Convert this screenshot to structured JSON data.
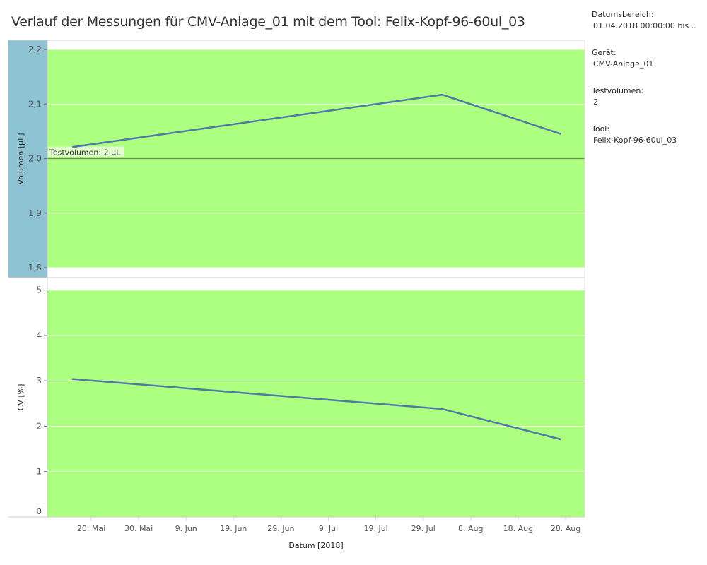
{
  "title": "Verlauf der Messungen für CMV-Anlage_01 mit dem Tool: Felix-Kopf-96-60ul_03",
  "filters": [
    {
      "label": "Datumsbereich:",
      "value": "01.04.2018 00:00:00 bis .."
    },
    {
      "label": "Gerät:",
      "value": "CMV-Anlage_01"
    },
    {
      "label": "Testvolumen:",
      "value": "2"
    },
    {
      "label": "Tool:",
      "value": "Felix-Kopf-96-60ul_03"
    }
  ],
  "colors": {
    "band": "#adff80",
    "line": "#4e79a7",
    "axis_highlight": "#8ec3d3",
    "ref_line": "#6a8a5a"
  },
  "chart_data": [
    {
      "type": "line",
      "ylabel": "Volumen [µL]",
      "ylim": [
        1.8,
        2.2
      ],
      "yticks": [
        "2,2",
        "2,1",
        "2,0",
        "1,9",
        "1,8"
      ],
      "ytick_values": [
        2.2,
        2.1,
        2.0,
        1.9,
        1.8
      ],
      "x": [
        "2018-05-16",
        "2018-08-02",
        "2018-08-27"
      ],
      "values": [
        2.021,
        2.117,
        2.045
      ],
      "band": [
        1.8,
        2.2
      ],
      "reference_line": {
        "value": 2.0,
        "label": "Testvolumen: 2 µL"
      },
      "grid": true
    },
    {
      "type": "line",
      "ylabel": "CV [%]",
      "ylim": [
        0,
        5
      ],
      "yticks": [
        "5",
        "4",
        "3",
        "2",
        "1",
        "0"
      ],
      "ytick_values": [
        5,
        4,
        3,
        2,
        1,
        0
      ],
      "x": [
        "2018-05-16",
        "2018-08-02",
        "2018-08-27"
      ],
      "values": [
        3.04,
        2.38,
        1.71
      ],
      "band": [
        0,
        5
      ],
      "grid": true
    }
  ],
  "xaxis": {
    "label": "Datum [2018]",
    "ticks": [
      "20. Mai",
      "30. Mai",
      "9. Jun",
      "19. Jun",
      "29. Jun",
      "9. Jul",
      "19. Jul",
      "29. Jul",
      "8. Aug",
      "18. Aug",
      "28. Aug"
    ],
    "tick_dates": [
      "2018-05-20",
      "2018-05-30",
      "2018-06-09",
      "2018-06-19",
      "2018-06-29",
      "2018-07-09",
      "2018-07-19",
      "2018-07-29",
      "2018-08-08",
      "2018-08-18",
      "2018-08-28"
    ]
  }
}
